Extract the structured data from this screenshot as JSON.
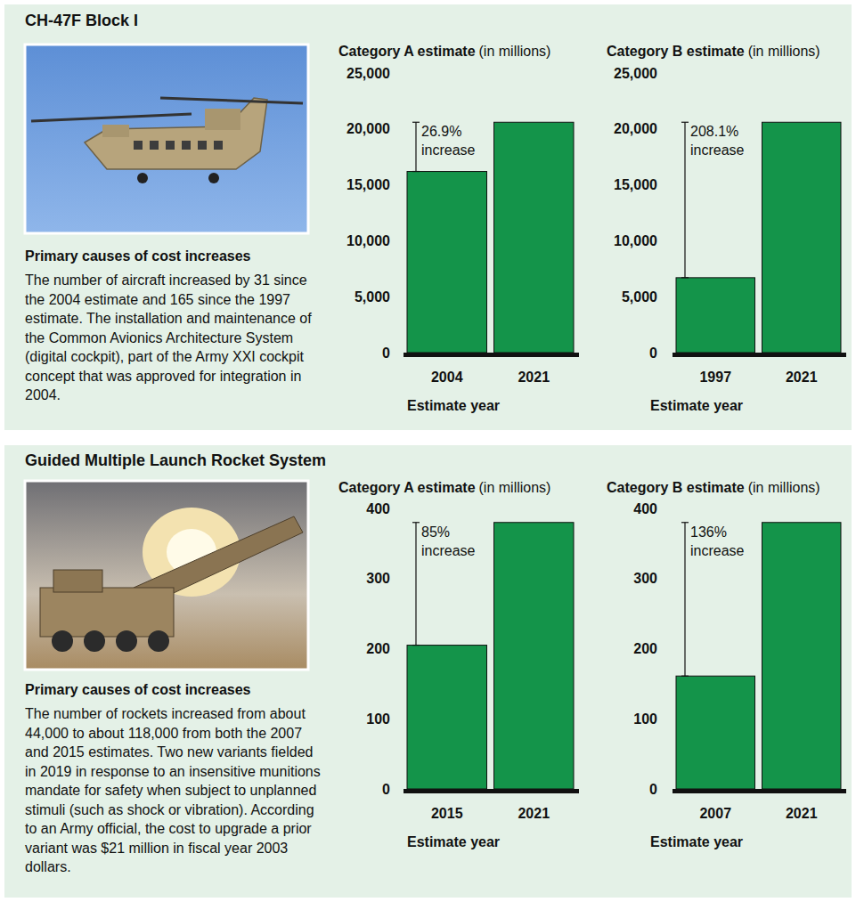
{
  "panels": [
    {
      "title": "CH-47F Block I",
      "causes_heading": "Primary causes of cost increases",
      "causes_text": "The number of aircraft increased by 31 since the 2004 estimate and 165 since the 1997 estimate. The installation and maintenance of the Common Avionics Architecture System (digital cockpit), part of the Army XXI cockpit concept that was approved for integration in 2004."
    },
    {
      "title": "Guided Multiple Launch Rocket System",
      "causes_heading": "Primary causes of cost increases",
      "causes_text": "The number of rockets increased from about 44,000 to about 118,000 from both the 2007 and 2015 estimates. Two new variants fielded in 2019 in response to an insensitive munitions mandate for safety when subject to unplanned stimuli (such as shock or vibration). According to an Army official, the cost to upgrade a prior variant was $21 million in fiscal year 2003 dollars."
    }
  ],
  "chart_data": [
    {
      "type": "bar",
      "title": "Category A estimate",
      "subtitle": "(in millions)",
      "x_label": "Estimate year",
      "categories": [
        "2004",
        "2021"
      ],
      "values": [
        16200,
        20600
      ],
      "color": "#14944a",
      "ylim": [
        0,
        25000
      ],
      "yticks": [
        0,
        {
          "value": 5000,
          "label": "5,000"
        },
        {
          "value": 10000,
          "label": "10,000"
        },
        {
          "value": 15000,
          "label": "15,000"
        },
        {
          "value": 20000,
          "label": "20,000"
        },
        {
          "value": 25000,
          "label": "25,000"
        }
      ],
      "annotation": "26.9% increase"
    },
    {
      "type": "bar",
      "title": "Category B estimate",
      "subtitle": "(in millions)",
      "x_label": "Estimate year",
      "categories": [
        "1997",
        "2021"
      ],
      "values": [
        6700,
        20600
      ],
      "color": "#14944a",
      "ylim": [
        0,
        25000
      ],
      "yticks": [
        0,
        {
          "value": 5000,
          "label": "5,000"
        },
        {
          "value": 10000,
          "label": "10,000"
        },
        {
          "value": 15000,
          "label": "15,000"
        },
        {
          "value": 20000,
          "label": "20,000"
        },
        {
          "value": 25000,
          "label": "25,000"
        }
      ],
      "annotation": "208.1% increase"
    },
    {
      "type": "bar",
      "title": "Category A estimate",
      "subtitle": "(in millions)",
      "x_label": "Estimate year",
      "categories": [
        "2015",
        "2021"
      ],
      "values": [
        205,
        380
      ],
      "color": "#14944a",
      "ylim": [
        0,
        400
      ],
      "yticks": [
        0,
        100,
        200,
        300,
        400
      ],
      "annotation": "85% increase"
    },
    {
      "type": "bar",
      "title": "Category B estimate",
      "subtitle": "(in millions)",
      "x_label": "Estimate year",
      "categories": [
        "2007",
        "2021"
      ],
      "values": [
        161,
        380
      ],
      "color": "#14944a",
      "ylim": [
        0,
        400
      ],
      "yticks": [
        0,
        100,
        200,
        300,
        400
      ],
      "annotation": "136% increase"
    }
  ]
}
